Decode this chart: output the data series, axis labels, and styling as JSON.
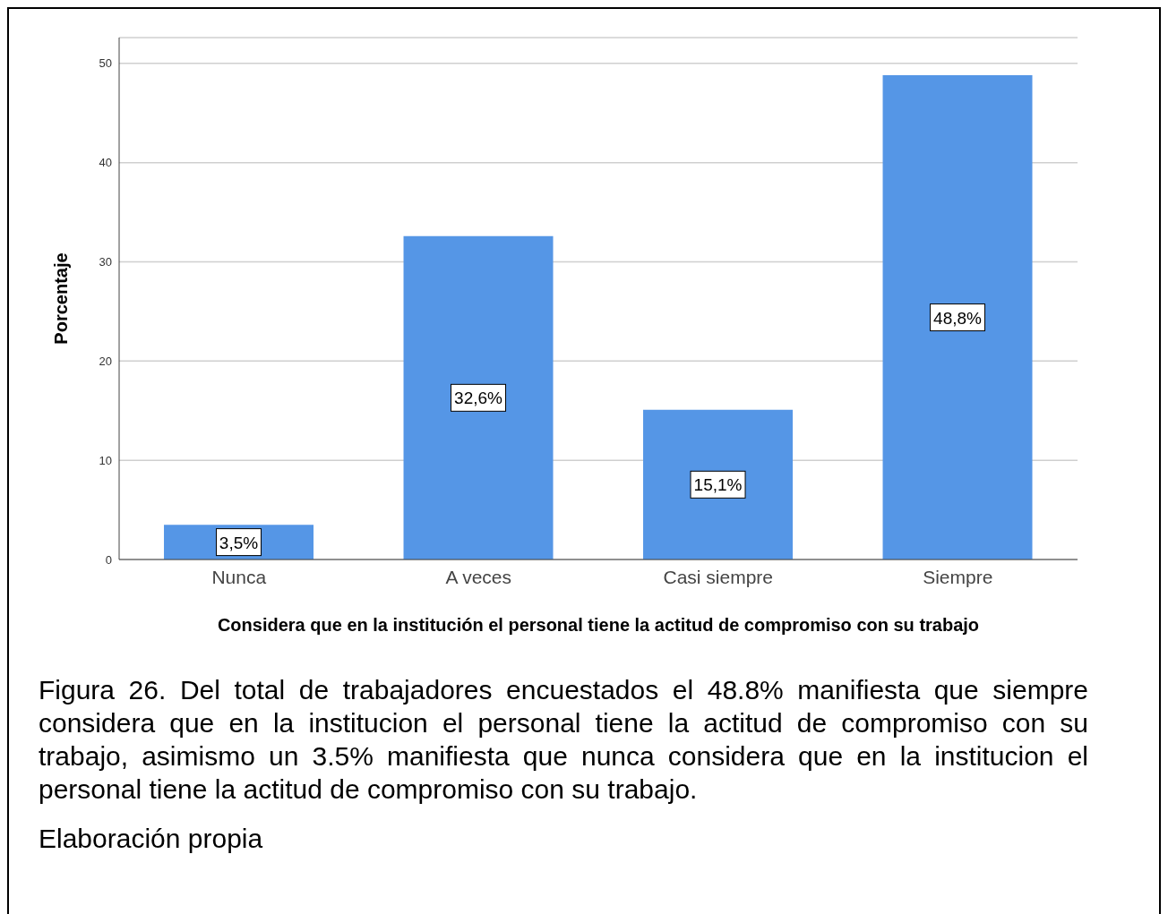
{
  "chart_data": {
    "type": "bar",
    "ylabel": "Porcentaje",
    "xlabel": "Considera que en la institución el personal tiene la actitud de compromiso con su trabajo",
    "categories": [
      "Nunca",
      "A veces",
      "Casi siempre",
      "Siempre"
    ],
    "values": [
      3.5,
      32.6,
      15.1,
      48.8
    ],
    "value_labels": [
      "3,5%",
      "32,6%",
      "15,1%",
      "48,8%"
    ],
    "color": "#5596e6",
    "ylim": [
      0,
      52.6
    ],
    "yticks": [
      0,
      10,
      20,
      30,
      40,
      50
    ],
    "grid": "y",
    "legend": false,
    "annotations": [
      "Figura 26. Del total de trabajadores encuestados el 48.8% manifiesta que siempre considera que en la institucion el personal tiene la actitud de compromiso con su trabajo, asimismo un 3.5% manifiesta que nunca considera que en la institucion el personal tiene la actitud de compromiso con su trabajo.",
      "Elaboración propia"
    ]
  }
}
